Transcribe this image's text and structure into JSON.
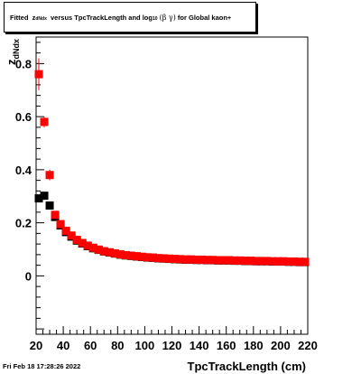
{
  "title": {
    "fitted": "Fitted",
    "z": "z",
    "z_sub": "dNdx",
    "versus": "versus TpcTrackLength and log",
    "log_sub": "10",
    "beta_gamma": "(β γ)",
    "suffix": "for Global kaon+"
  },
  "timestamp": "Fri Feb 18 17:28:26 2022",
  "chart_data": {
    "type": "scatter",
    "title": "Fitted z_dNdx versus TpcTrackLength and log10(β γ) for Global kaon+",
    "xlabel": "TpcTrackLength (cm)",
    "ylabel": "z_dNdx",
    "ylabel_main": "z",
    "ylabel_sub": "dNdx",
    "xlim": [
      20,
      220
    ],
    "ylim": [
      -0.22,
      0.9
    ],
    "x_ticks": [
      20,
      40,
      60,
      80,
      100,
      120,
      140,
      160,
      180,
      200,
      220
    ],
    "y_ticks": [
      0,
      0.2,
      0.4,
      0.6,
      0.8
    ],
    "y_tick_labels": [
      "0",
      "0.2",
      "0.4",
      "0.6",
      "0.8"
    ],
    "grid": false,
    "series": [
      {
        "color": "#000000",
        "x": [
          22,
          26,
          30,
          34,
          38,
          42,
          46,
          50,
          54,
          58,
          62,
          66,
          70,
          74,
          78,
          82,
          86,
          90,
          94,
          98,
          102,
          106,
          110,
          114,
          118,
          122,
          126,
          130,
          134,
          138,
          142,
          146,
          150,
          154,
          158,
          162,
          166,
          170,
          174,
          178,
          182,
          186,
          190,
          194,
          198,
          202,
          206,
          210,
          214,
          218
        ],
        "y": [
          0.292,
          0.302,
          0.265,
          0.222,
          0.19,
          0.165,
          0.148,
          0.133,
          0.122,
          0.112,
          0.104,
          0.098,
          0.092,
          0.088,
          0.084,
          0.08,
          0.077,
          0.075,
          0.073,
          0.071,
          0.069,
          0.068,
          0.066,
          0.065,
          0.064,
          0.063,
          0.062,
          0.061,
          0.061,
          0.06,
          0.06,
          0.059,
          0.059,
          0.058,
          0.058,
          0.058,
          0.057,
          0.057,
          0.056,
          0.056,
          0.055,
          0.055,
          0.055,
          0.054,
          0.054,
          0.054,
          0.053,
          0.053,
          0.052,
          0.052
        ],
        "yerr": [
          0.01,
          0.01,
          0.01,
          0.006,
          0.005,
          0.004,
          0.003,
          0.003,
          0.002,
          0.002,
          0.002,
          0.002,
          0.002,
          0.002,
          0.002,
          0.002,
          0.002,
          0.002,
          0.002,
          0.002,
          0.002,
          0.002,
          0.002,
          0.002,
          0.002,
          0.002,
          0.002,
          0.002,
          0.002,
          0.002,
          0.002,
          0.002,
          0.002,
          0.002,
          0.002,
          0.002,
          0.002,
          0.002,
          0.002,
          0.002,
          0.002,
          0.002,
          0.002,
          0.002,
          0.002,
          0.002,
          0.002,
          0.002,
          0.002,
          0.002
        ]
      },
      {
        "color": "#ff0000",
        "x": [
          22,
          26,
          30,
          34,
          38,
          42,
          46,
          50,
          54,
          58,
          62,
          66,
          70,
          74,
          78,
          82,
          86,
          90,
          94,
          98,
          102,
          106,
          110,
          114,
          118,
          122,
          126,
          130,
          134,
          138,
          142,
          146,
          150,
          154,
          158,
          162,
          166,
          170,
          174,
          178,
          182,
          186,
          190,
          194,
          198,
          202,
          206,
          210,
          214,
          218
        ],
        "y": [
          0.76,
          0.58,
          0.38,
          0.23,
          0.195,
          0.17,
          0.152,
          0.136,
          0.124,
          0.114,
          0.106,
          0.099,
          0.093,
          0.089,
          0.085,
          0.081,
          0.078,
          0.076,
          0.074,
          0.072,
          0.07,
          0.069,
          0.067,
          0.066,
          0.065,
          0.064,
          0.063,
          0.062,
          0.062,
          0.061,
          0.061,
          0.06,
          0.06,
          0.059,
          0.059,
          0.059,
          0.058,
          0.058,
          0.057,
          0.057,
          0.056,
          0.056,
          0.056,
          0.055,
          0.055,
          0.055,
          0.054,
          0.054,
          0.053,
          0.053
        ],
        "yerr": [
          0.06,
          0.02,
          0.02,
          0.008,
          0.006,
          0.005,
          0.004,
          0.003,
          0.003,
          0.002,
          0.002,
          0.002,
          0.002,
          0.002,
          0.002,
          0.002,
          0.002,
          0.002,
          0.002,
          0.002,
          0.002,
          0.002,
          0.002,
          0.002,
          0.002,
          0.002,
          0.002,
          0.002,
          0.002,
          0.002,
          0.002,
          0.002,
          0.002,
          0.002,
          0.002,
          0.002,
          0.002,
          0.002,
          0.002,
          0.002,
          0.002,
          0.002,
          0.002,
          0.002,
          0.002,
          0.002,
          0.002,
          0.002,
          0.002,
          0.002
        ]
      }
    ]
  }
}
